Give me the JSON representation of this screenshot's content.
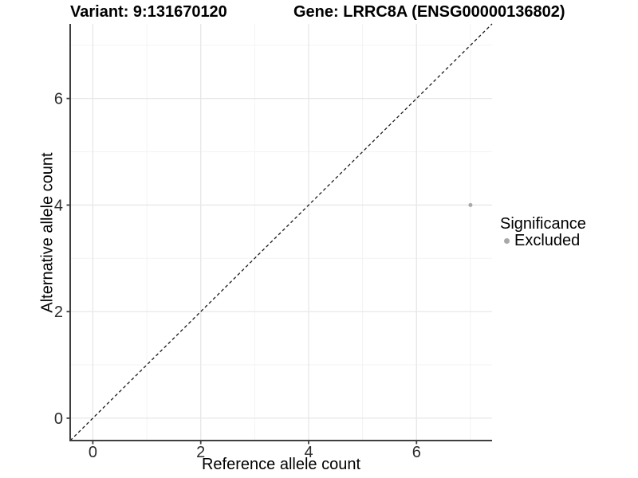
{
  "header": {
    "variant_title": "Variant: 9:131670120",
    "gene_title": "Gene: LRRC8A (ENSG00000136802)"
  },
  "legend": {
    "title": "Significance",
    "items": [
      {
        "label": "Excluded",
        "color": "#a8a8a8",
        "marker": "circle"
      }
    ]
  },
  "colors": {
    "background": "#ffffff",
    "grid_major": "#e7e7e7",
    "grid_minor": "#f3f3f3",
    "axis_line": "#3f3f3f",
    "tick_label": "#2b2b2b",
    "title_text": "#000000",
    "reference_line": "#1a1a1a"
  },
  "chart_data": {
    "type": "scatter",
    "title": "Variant: 9:131670120   Gene: LRRC8A (ENSG00000136802)",
    "xlabel": "Reference allele count",
    "ylabel": "Alternative allele count",
    "xlim": [
      -0.42,
      7.4
    ],
    "ylim": [
      -0.42,
      7.4
    ],
    "x_ticks": [
      0,
      2,
      4,
      6
    ],
    "y_ticks": [
      0,
      2,
      4,
      6
    ],
    "x_minor_ticks": [
      1,
      3,
      5,
      7
    ],
    "y_minor_ticks": [
      1,
      3,
      5,
      7
    ],
    "grid": true,
    "legend_position": "right",
    "reference_line": {
      "slope": 1,
      "intercept": 0,
      "linestyle": "dashed",
      "color": "#1a1a1a"
    },
    "series": [
      {
        "name": "Excluded",
        "color": "#a8a8a8",
        "marker": "circle",
        "points": [
          [
            7,
            4
          ]
        ]
      }
    ]
  }
}
